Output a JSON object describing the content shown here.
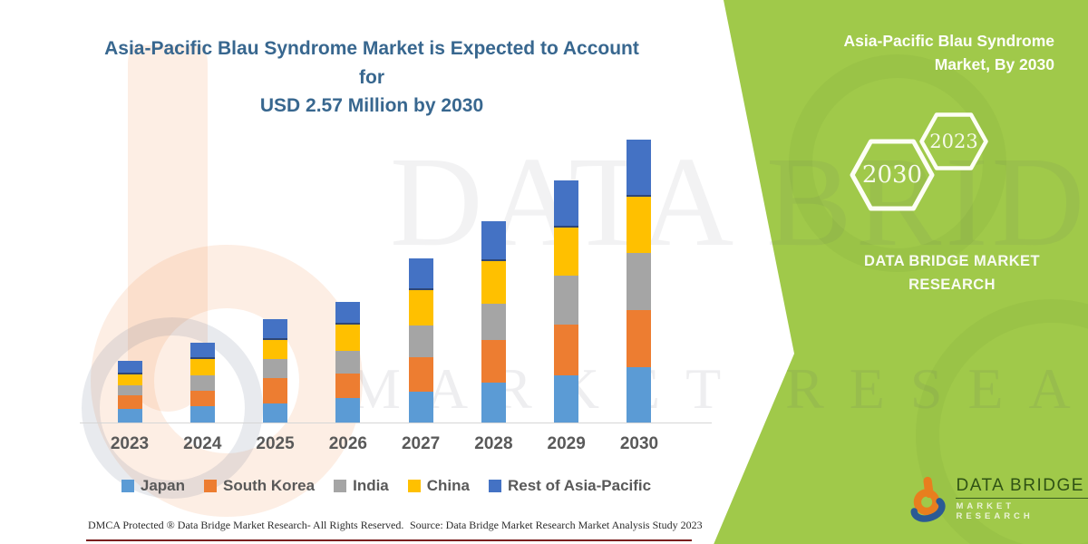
{
  "title": {
    "line1": "Asia-Pacific Blau Syndrome Market is Expected to Account for",
    "line2": "USD 2.57 Million by 2030"
  },
  "chart_data": {
    "type": "bar",
    "stacked": true,
    "unit": "USD Million",
    "categories": [
      "2023",
      "2024",
      "2025",
      "2026",
      "2027",
      "2028",
      "2029",
      "2030"
    ],
    "series": [
      {
        "name": "Japan",
        "color": "#5B9BD5",
        "values": [
          0.12,
          0.15,
          0.17,
          0.22,
          0.28,
          0.36,
          0.43,
          0.5
        ]
      },
      {
        "name": "South Korea",
        "color": "#ED7D31",
        "values": [
          0.12,
          0.14,
          0.23,
          0.22,
          0.31,
          0.39,
          0.46,
          0.52
        ]
      },
      {
        "name": "India",
        "color": "#A5A5A5",
        "values": [
          0.09,
          0.14,
          0.17,
          0.21,
          0.29,
          0.33,
          0.45,
          0.52
        ]
      },
      {
        "name": "China",
        "color": "#FFC000",
        "values": [
          0.1,
          0.15,
          0.17,
          0.24,
          0.32,
          0.39,
          0.44,
          0.51
        ]
      },
      {
        "name": "Rest of Asia-Pacific",
        "color": "#4472C4",
        "values": [
          0.12,
          0.15,
          0.19,
          0.21,
          0.29,
          0.36,
          0.43,
          0.52
        ]
      }
    ],
    "totals": [
      0.55,
      0.73,
      0.93,
      1.1,
      1.49,
      1.83,
      2.21,
      2.57
    ],
    "ylim": [
      0,
      2.8
    ],
    "grid": false,
    "legend_position": "bottom"
  },
  "side_panel": {
    "title_line1": "Asia-Pacific Blau Syndrome",
    "title_line2": "Market, By 2030",
    "hexagon_large": "2030",
    "hexagon_small": "2023",
    "brand_text": "DATA BRIDGE MARKET RESEARCH"
  },
  "watermark": {
    "line1": "DATA BRIDGE",
    "line2": "MARKET RESEARCH"
  },
  "footer": {
    "dmca": "DMCA Protected ® Data Bridge Market Research- All Rights Reserved.",
    "source": "Source: Data Bridge Market Research Market Analysis Study 2023"
  },
  "logo": {
    "title": "DATA BRIDGE",
    "subtitle": "MARKET RESEARCH"
  },
  "colors": {
    "accent_green": "#A0C94A",
    "title_blue": "#38678F",
    "axis_text": "#595959",
    "footer_rule_maroon": "#7A1E1E",
    "logo_orange": "#E87E1E",
    "logo_navy": "#2B5A94"
  }
}
